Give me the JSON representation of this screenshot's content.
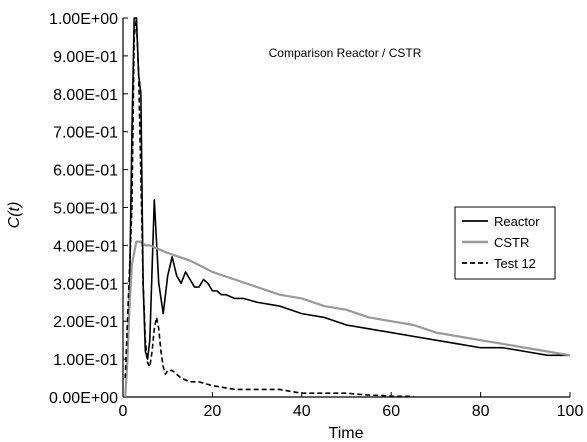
{
  "chart_data": {
    "type": "line",
    "title": "Comparison Reactor / CSTR",
    "xlabel": "Time",
    "ylabel": "C(t)",
    "xlim": [
      0,
      100
    ],
    "ylim": [
      0,
      1
    ],
    "x_ticks": [
      0,
      20,
      40,
      60,
      80,
      100
    ],
    "x_tick_labels": [
      "0",
      "20",
      "40",
      "60",
      "80",
      "100"
    ],
    "y_ticks": [
      0,
      0.1,
      0.2,
      0.3,
      0.4,
      0.5,
      0.6,
      0.7,
      0.8,
      0.9,
      1.0
    ],
    "y_tick_labels": [
      "0.00E+00",
      "1.00E-01",
      "2.00E-01",
      "3.00E-01",
      "4.00E-01",
      "5.00E-01",
      "6.00E-01",
      "7.00E-01",
      "8.00E-01",
      "9.00E-01",
      "1.00E+00"
    ],
    "grid": false,
    "legend_position": "right",
    "series": [
      {
        "name": "Reactor",
        "color": "#000000",
        "style": "solid",
        "x": [
          0.5,
          1,
          1.5,
          2,
          2.5,
          3,
          3.5,
          4,
          4.5,
          5,
          5.5,
          6,
          7,
          8,
          9,
          10,
          11,
          12,
          13,
          14,
          15,
          16,
          17,
          18,
          19,
          20,
          21,
          22,
          23,
          25,
          27,
          30,
          35,
          40,
          45,
          50,
          55,
          60,
          65,
          70,
          75,
          80,
          85,
          90,
          95,
          98,
          100
        ],
        "y": [
          0.0,
          0.1,
          0.3,
          0.7,
          1.0,
          1.0,
          0.85,
          0.8,
          0.3,
          0.12,
          0.1,
          0.15,
          0.52,
          0.3,
          0.22,
          0.32,
          0.37,
          0.32,
          0.3,
          0.33,
          0.31,
          0.29,
          0.29,
          0.31,
          0.3,
          0.28,
          0.28,
          0.27,
          0.27,
          0.26,
          0.26,
          0.25,
          0.24,
          0.22,
          0.21,
          0.19,
          0.18,
          0.17,
          0.16,
          0.15,
          0.14,
          0.13,
          0.13,
          0.12,
          0.11,
          0.11,
          0.11
        ]
      },
      {
        "name": "CSTR",
        "color": "#999999",
        "style": "solid",
        "x": [
          0.5,
          1,
          1.5,
          2,
          3,
          4,
          5,
          6,
          8,
          10,
          15,
          20,
          25,
          30,
          35,
          40,
          45,
          50,
          55,
          60,
          65,
          70,
          75,
          80,
          85,
          90,
          95,
          100
        ],
        "y": [
          0.0,
          0.1,
          0.25,
          0.35,
          0.41,
          0.41,
          0.4,
          0.4,
          0.39,
          0.38,
          0.36,
          0.33,
          0.31,
          0.29,
          0.27,
          0.26,
          0.24,
          0.23,
          0.21,
          0.2,
          0.19,
          0.17,
          0.16,
          0.15,
          0.14,
          0.13,
          0.12,
          0.11
        ]
      },
      {
        "name": "Test 12",
        "color": "#000000",
        "style": "dashed",
        "x": [
          0.5,
          1,
          1.5,
          2,
          2.5,
          3,
          3.5,
          4,
          4.5,
          5,
          5.5,
          6,
          6.5,
          7,
          7.5,
          8,
          8.5,
          9,
          9.5,
          10,
          11,
          12,
          13,
          15,
          17,
          20,
          25,
          30,
          35,
          40,
          45,
          50,
          55,
          58,
          60,
          65
        ],
        "y": [
          0.05,
          0.2,
          0.35,
          0.5,
          0.95,
          1.0,
          0.85,
          0.58,
          0.3,
          0.15,
          0.09,
          0.08,
          0.12,
          0.18,
          0.21,
          0.18,
          0.12,
          0.08,
          0.06,
          0.07,
          0.07,
          0.06,
          0.05,
          0.04,
          0.04,
          0.03,
          0.02,
          0.02,
          0.02,
          0.01,
          0.01,
          0.01,
          0.005,
          0.004,
          0.002,
          0.002
        ]
      }
    ]
  }
}
